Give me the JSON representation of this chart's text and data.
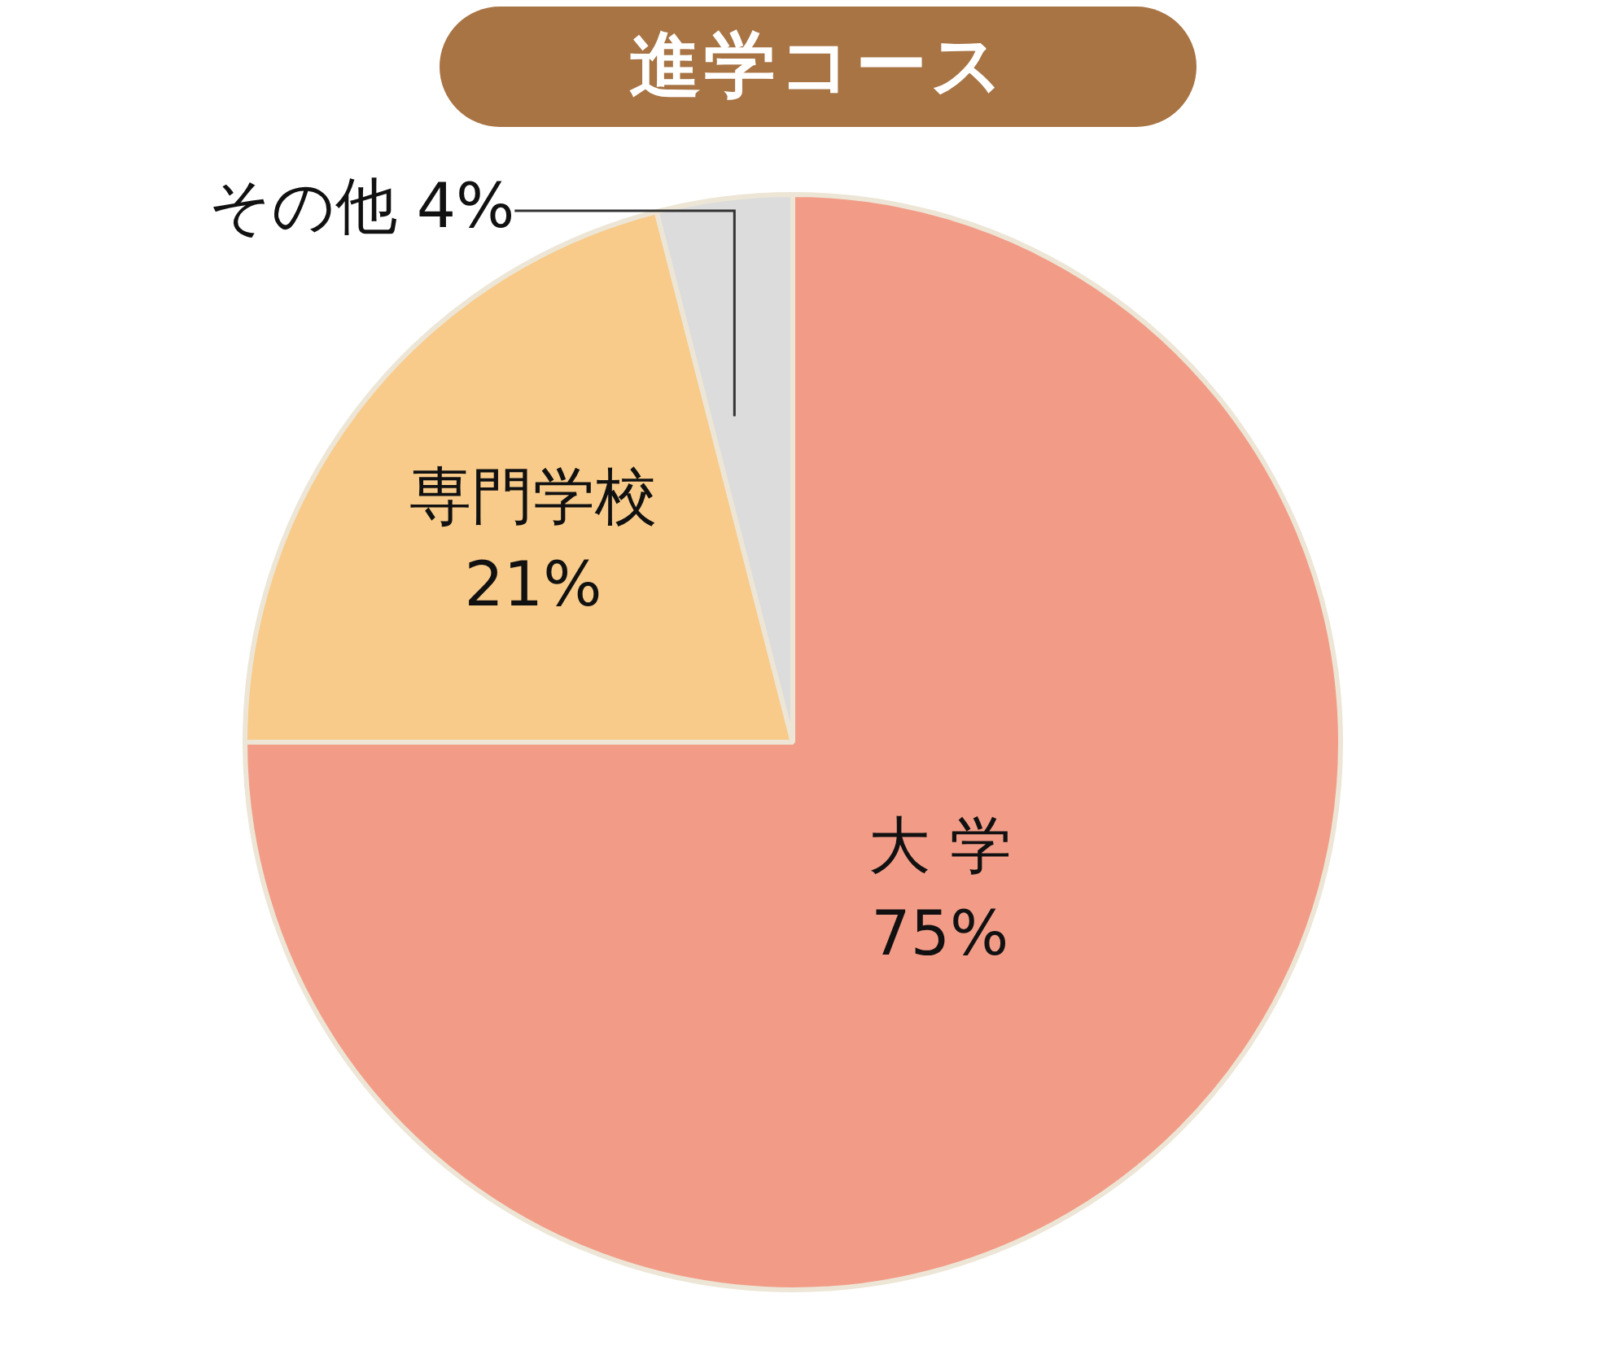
{
  "chart_data": {
    "type": "pie",
    "title": "進学コース",
    "categories": [
      "大 学",
      "専門学校",
      "その他"
    ],
    "values": [
      75,
      21,
      4
    ],
    "value_labels": [
      "75%",
      "21%",
      "4%"
    ],
    "colors": [
      "#f29c87",
      "#f8cb8a",
      "#dcdcdc"
    ],
    "legend": false
  }
}
